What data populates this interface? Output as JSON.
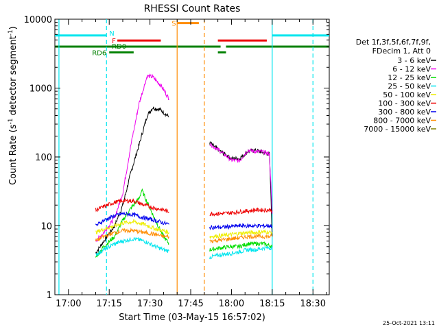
{
  "chart_data": {
    "type": "line",
    "title": "RHESSI Count Rates",
    "xlabel": "Start Time (03-May-15 16:57:02)",
    "ylabel_main": "Count Rate (s",
    "ylabel_sup1": "-1",
    "ylabel_mid": " detector segment",
    "ylabel_sup2": "-1",
    "ylabel_end": ")",
    "y_scale": "log",
    "ylim": [
      1,
      10000
    ],
    "xlim": [
      "16:55",
      "18:36"
    ],
    "x_ticks": [
      "17:00",
      "17:15",
      "17:30",
      "17:45",
      "18:00",
      "18:15",
      "18:30"
    ],
    "y_ticks": [
      "1",
      "10",
      "100",
      "1000",
      "10000"
    ],
    "legend_header": [
      "Det 1f,3f,5f,6f,7f,9f,",
      "FDecim 1, Att 0"
    ],
    "timestamp": "25-Oct-2021 13:11",
    "flags": [
      {
        "label": "N",
        "color": "#00e5ee"
      },
      {
        "label": "F",
        "color": "#ee0000"
      },
      {
        "label": "S",
        "color": "#ff8c00"
      },
      {
        "label": "RD0",
        "color": "#008000"
      },
      {
        "label": "RD6",
        "color": "#008000"
      }
    ],
    "vertical_lines": [
      {
        "time": "16:56:30",
        "color": "#00e5ee",
        "style": "solid"
      },
      {
        "time": "17:14",
        "color": "#00e5ee",
        "style": "dashed"
      },
      {
        "time": "17:40",
        "color": "#ff8c00",
        "style": "solid"
      },
      {
        "time": "17:50",
        "color": "#ff8c00",
        "style": "dashed"
      },
      {
        "time": "18:15",
        "color": "#00e5ee",
        "style": "solid"
      },
      {
        "time": "18:30",
        "color": "#00e5ee",
        "style": "dashed"
      }
    ],
    "series": [
      {
        "name": "3 - 6 keV",
        "color": "#000000",
        "segments": [
          [
            [
              "17:10",
              4
            ],
            [
              "17:13",
              6
            ],
            [
              "17:17",
              10
            ],
            [
              "17:20",
              20
            ],
            [
              "17:23",
              60
            ],
            [
              "17:26",
              150
            ],
            [
              "17:29",
              400
            ],
            [
              "17:31",
              520
            ],
            [
              "17:34",
              480
            ],
            [
              "17:37",
              380
            ]
          ],
          [
            [
              "17:52",
              160
            ],
            [
              "17:56",
              120
            ],
            [
              "18:00",
              95
            ],
            [
              "18:03",
              95
            ],
            [
              "18:06",
              120
            ],
            [
              "18:09",
              125
            ],
            [
              "18:12",
              115
            ],
            [
              "18:14",
              110
            ],
            [
              "18:15",
              7
            ]
          ]
        ]
      },
      {
        "name": "6 - 12 keV",
        "color": "#ee00ee",
        "segments": [
          [
            [
              "17:10",
              6
            ],
            [
              "17:13",
              8
            ],
            [
              "17:17",
              13
            ],
            [
              "17:20",
              30
            ],
            [
              "17:23",
              150
            ],
            [
              "17:26",
              600
            ],
            [
              "17:29",
              1500
            ],
            [
              "17:31",
              1450
            ],
            [
              "17:34",
              1100
            ],
            [
              "17:37",
              700
            ]
          ],
          [
            [
              "17:52",
              155
            ],
            [
              "17:56",
              120
            ],
            [
              "18:00",
              90
            ],
            [
              "18:03",
              88
            ],
            [
              "18:06",
              125
            ],
            [
              "18:09",
              120
            ],
            [
              "18:12",
              118
            ],
            [
              "18:14",
              110
            ],
            [
              "18:15",
              15
            ]
          ]
        ]
      },
      {
        "name": "12 - 25 keV",
        "color": "#00dd00",
        "segments": [
          [
            [
              "17:10",
              3.5
            ],
            [
              "17:13",
              5
            ],
            [
              "17:17",
              7
            ],
            [
              "17:20",
              12
            ],
            [
              "17:23",
              18
            ],
            [
              "17:26",
              25
            ],
            [
              "17:27",
              33
            ],
            [
              "17:29",
              22
            ],
            [
              "17:32",
              12
            ],
            [
              "17:35",
              7
            ],
            [
              "17:37",
              5.5
            ]
          ],
          [
            [
              "17:52",
              4.5
            ],
            [
              "17:56",
              4.8
            ],
            [
              "18:00",
              5
            ],
            [
              "18:03",
              5
            ],
            [
              "18:06",
              5.5
            ],
            [
              "18:09",
              5.5
            ],
            [
              "18:12",
              5.5
            ],
            [
              "18:15",
              5
            ]
          ]
        ]
      },
      {
        "name": "25 - 50 keV",
        "color": "#00e5ee",
        "segments": [
          [
            [
              "17:10",
              3.8
            ],
            [
              "17:13",
              4.5
            ],
            [
              "17:17",
              5.5
            ],
            [
              "17:20",
              6
            ],
            [
              "17:24",
              6.5
            ],
            [
              "17:28",
              6
            ],
            [
              "17:32",
              5
            ],
            [
              "17:35",
              4.5
            ],
            [
              "17:37",
              4.3
            ]
          ],
          [
            [
              "17:52",
              3.5
            ],
            [
              "17:56",
              3.8
            ],
            [
              "18:00",
              4
            ],
            [
              "18:03",
              4.2
            ],
            [
              "18:06",
              4.5
            ],
            [
              "18:09",
              4.5
            ],
            [
              "18:12",
              4.8
            ],
            [
              "18:15",
              4.8
            ]
          ]
        ]
      },
      {
        "name": "50 - 100 keV",
        "color": "#eeee00",
        "segments": [
          [
            [
              "17:10",
              8
            ],
            [
              "17:13",
              9
            ],
            [
              "17:17",
              10
            ],
            [
              "17:20",
              11
            ],
            [
              "17:24",
              11.5
            ],
            [
              "17:28",
              10.5
            ],
            [
              "17:32",
              9
            ],
            [
              "17:35",
              8.5
            ],
            [
              "17:37",
              8
            ]
          ],
          [
            [
              "17:52",
              7
            ],
            [
              "17:56",
              7.2
            ],
            [
              "18:00",
              7.5
            ],
            [
              "18:03",
              7.8
            ],
            [
              "18:06",
              8
            ],
            [
              "18:09",
              8
            ],
            [
              "18:12",
              8.2
            ],
            [
              "18:15",
              8
            ]
          ]
        ]
      },
      {
        "name": "100 - 300 keV",
        "color": "#ee0000",
        "segments": [
          [
            [
              "17:10",
              17
            ],
            [
              "17:13",
              19
            ],
            [
              "17:17",
              22
            ],
            [
              "17:20",
              23
            ],
            [
              "17:24",
              23
            ],
            [
              "17:28",
              20
            ],
            [
              "17:32",
              18
            ],
            [
              "17:35",
              17
            ],
            [
              "17:37",
              16
            ]
          ],
          [
            [
              "17:52",
              15
            ],
            [
              "17:56",
              15
            ],
            [
              "18:00",
              15.5
            ],
            [
              "18:03",
              16
            ],
            [
              "18:06",
              16.5
            ],
            [
              "18:09",
              17
            ],
            [
              "18:12",
              17
            ],
            [
              "18:15",
              17
            ]
          ]
        ]
      },
      {
        "name": "300 - 800 keV",
        "color": "#0000ee",
        "segments": [
          [
            [
              "17:10",
              10
            ],
            [
              "17:13",
              12
            ],
            [
              "17:17",
              14
            ],
            [
              "17:20",
              15
            ],
            [
              "17:24",
              14.5
            ],
            [
              "17:28",
              13
            ],
            [
              "17:32",
              12
            ],
            [
              "17:35",
              11
            ],
            [
              "17:37",
              10.5
            ]
          ],
          [
            [
              "17:52",
              9.5
            ],
            [
              "17:56",
              9.5
            ],
            [
              "18:00",
              9.8
            ],
            [
              "18:03",
              10
            ],
            [
              "18:06",
              10
            ],
            [
              "18:09",
              10
            ],
            [
              "18:12",
              10
            ],
            [
              "18:15",
              10
            ]
          ]
        ]
      },
      {
        "name": "800 - 7000 keV",
        "color": "#ff8c00",
        "segments": [
          [
            [
              "17:10",
              6
            ],
            [
              "17:13",
              7
            ],
            [
              "17:17",
              8
            ],
            [
              "17:20",
              8.5
            ],
            [
              "17:24",
              8.5
            ],
            [
              "17:28",
              8
            ],
            [
              "17:32",
              7.5
            ],
            [
              "17:35",
              7
            ],
            [
              "17:37",
              7
            ]
          ],
          [
            [
              "17:52",
              6
            ],
            [
              "17:56",
              6.2
            ],
            [
              "18:00",
              6.5
            ],
            [
              "18:03",
              6.7
            ],
            [
              "18:06",
              7
            ],
            [
              "18:09",
              7
            ],
            [
              "18:12",
              7
            ],
            [
              "18:15",
              7
            ]
          ]
        ]
      },
      {
        "name": "7000 - 15000 keV",
        "color": "#808000",
        "segments": []
      }
    ]
  }
}
